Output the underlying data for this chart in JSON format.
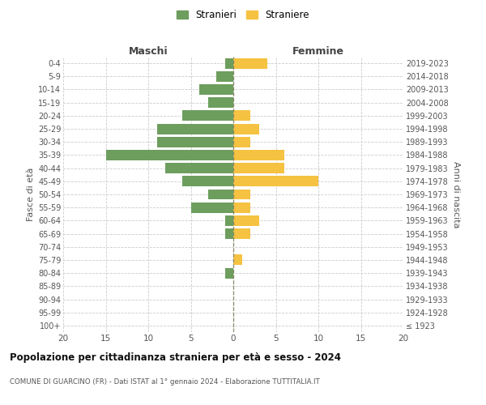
{
  "age_groups": [
    "100+",
    "95-99",
    "90-94",
    "85-89",
    "80-84",
    "75-79",
    "70-74",
    "65-69",
    "60-64",
    "55-59",
    "50-54",
    "45-49",
    "40-44",
    "35-39",
    "30-34",
    "25-29",
    "20-24",
    "15-19",
    "10-14",
    "5-9",
    "0-4"
  ],
  "birth_years": [
    "≤ 1923",
    "1924-1928",
    "1929-1933",
    "1934-1938",
    "1939-1943",
    "1944-1948",
    "1949-1953",
    "1954-1958",
    "1959-1963",
    "1964-1968",
    "1969-1973",
    "1974-1978",
    "1979-1983",
    "1984-1988",
    "1989-1993",
    "1994-1998",
    "1999-2003",
    "2004-2008",
    "2009-2013",
    "2014-2018",
    "2019-2023"
  ],
  "males": [
    0,
    0,
    0,
    0,
    1,
    0,
    0,
    1,
    1,
    5,
    3,
    6,
    8,
    15,
    9,
    9,
    6,
    3,
    4,
    2,
    1
  ],
  "females": [
    0,
    0,
    0,
    0,
    0,
    1,
    0,
    2,
    3,
    2,
    2,
    10,
    6,
    6,
    2,
    3,
    2,
    0,
    0,
    0,
    4
  ],
  "male_color": "#6d9e5e",
  "female_color": "#f5c242",
  "xlim": 20,
  "title": "Popolazione per cittadinanza straniera per età e sesso - 2024",
  "subtitle": "COMUNE DI GUARCINO (FR) - Dati ISTAT al 1° gennaio 2024 - Elaborazione TUTTITALIA.IT",
  "ylabel_left": "Fasce di età",
  "ylabel_right": "Anni di nascita",
  "header_left": "Maschi",
  "header_right": "Femmine",
  "legend_male": "Stranieri",
  "legend_female": "Straniere",
  "background_color": "#ffffff",
  "grid_color": "#cccccc",
  "bar_height": 0.8
}
